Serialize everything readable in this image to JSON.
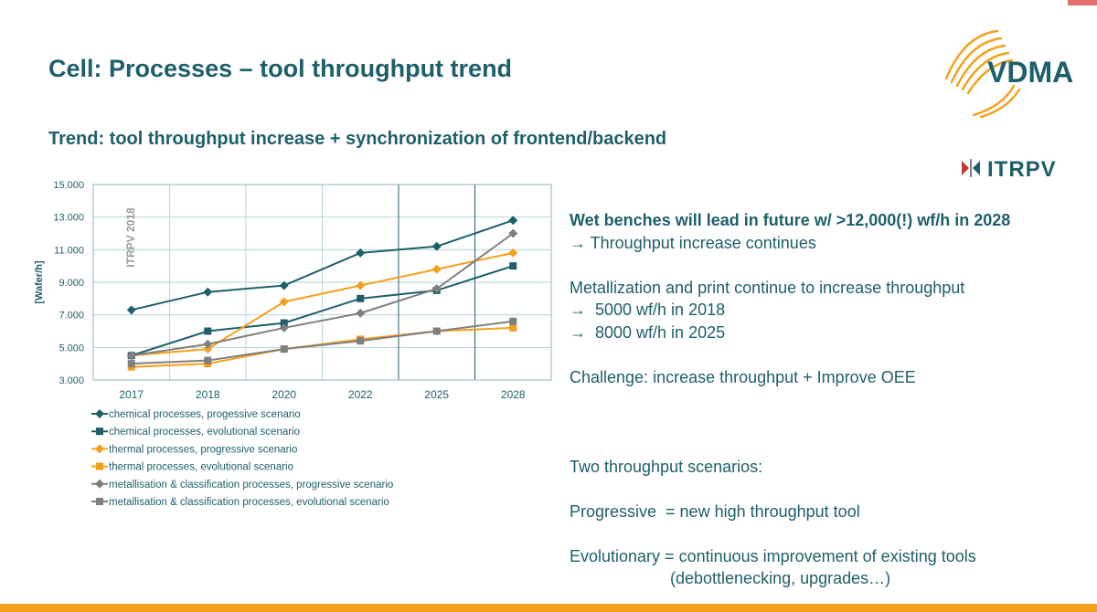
{
  "header": {
    "title": "Cell: Processes – tool throughput trend",
    "subtitle": "Trend: tool throughput increase + synchronization of frontend/backend"
  },
  "logos": {
    "vdma": "VDMA",
    "itrpv": "ITRPV"
  },
  "colors": {
    "teal": "#1d5f6b",
    "orange": "#f3a01b",
    "gray": "#7f7f7f"
  },
  "text_panel": {
    "headline": "Wet benches will lead in future w/ >12,000(!) wf/h in 2028",
    "line1": "→ Throughput increase continues",
    "line2": "Metallization and print continue to increase throughput",
    "line3": "→  5000 wf/h in 2018",
    "line4": "→  8000 wf/h in 2025",
    "line5": "Challenge: increase throughput + Improve OEE",
    "line6": "Two throughput scenarios:",
    "line7": "Progressive  = new high throughput tool",
    "line8": "Evolutionary = continuous improvement of existing tools",
    "line9": "(debottlenecking, upgrades…)"
  },
  "chart_data": {
    "type": "line",
    "title": "",
    "xlabel": "",
    "ylabel": "[Wafer/h]",
    "watermark": "ITRPV 2018",
    "categories": [
      "2017",
      "2018",
      "2020",
      "2022",
      "2025",
      "2028"
    ],
    "ylim": [
      3000,
      15000
    ],
    "yticks": [
      3000,
      5000,
      7000,
      9000,
      11000,
      13000,
      15000
    ],
    "ytick_labels": [
      "3.000",
      "5.000",
      "7.000",
      "9.000",
      "11.000",
      "13.000",
      "15.000"
    ],
    "grid": true,
    "legend_position": "bottom",
    "series": [
      {
        "name": "chemical processes, progessive scenario",
        "color": "#1d5f6b",
        "marker": "diamond",
        "values": [
          7300,
          8400,
          8800,
          10800,
          11200,
          12800
        ]
      },
      {
        "name": "chemical processes, evolutional scenario",
        "color": "#1d5f6b",
        "marker": "square",
        "values": [
          4500,
          6000,
          6500,
          8000,
          8500,
          10000
        ]
      },
      {
        "name": "thermal processes, progressive scenario",
        "color": "#f3a01b",
        "marker": "diamond",
        "values": [
          4500,
          4900,
          7800,
          8800,
          9800,
          10800
        ]
      },
      {
        "name": "thermal processes, evolutional scenario",
        "color": "#f3a01b",
        "marker": "square",
        "values": [
          3800,
          4000,
          4900,
          5500,
          6000,
          6200
        ]
      },
      {
        "name": "metallisation & classification processes, progressive scenario",
        "color": "#7f7f7f",
        "marker": "diamond",
        "values": [
          4500,
          5200,
          6200,
          7100,
          8600,
          12000
        ]
      },
      {
        "name": "metallisation & classification processes, evolutional scenario",
        "color": "#7f7f7f",
        "marker": "square",
        "values": [
          4000,
          4200,
          4900,
          5400,
          6000,
          6600
        ]
      }
    ]
  }
}
